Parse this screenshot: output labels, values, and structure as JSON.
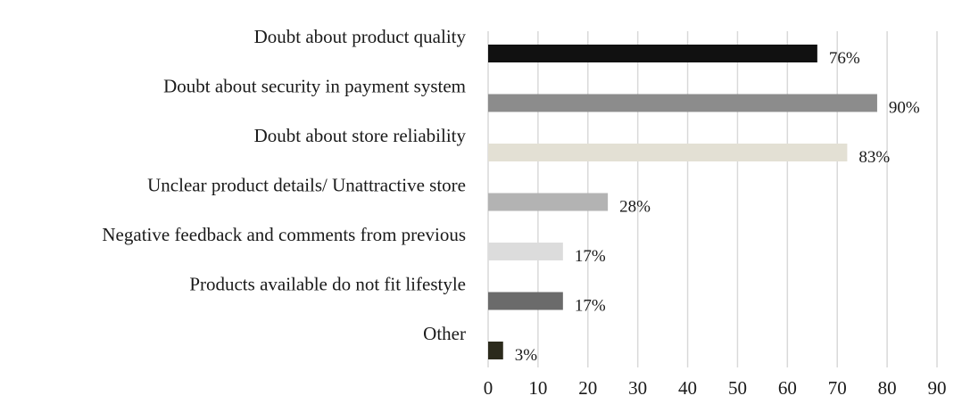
{
  "chart_data": {
    "type": "bar",
    "orientation": "horizontal",
    "categories": [
      "Doubt about product quality",
      "Doubt about security in payment system",
      "Doubt about store reliability",
      "Unclear product details/ Unattractive store",
      "Negative feedback and comments from previous",
      "Products available do not fit lifestyle",
      "Other"
    ],
    "values": [
      66,
      78,
      72,
      24,
      15,
      15,
      3
    ],
    "data_labels": [
      "76%",
      "90%",
      "83%",
      "28%",
      "17%",
      "17%",
      "3%"
    ],
    "bar_colors": [
      "#111111",
      "#8c8c8c",
      "#e3e0d4",
      "#b3b3b3",
      "#dcdcdc",
      "#6b6b6b",
      "#2b2a1c"
    ],
    "title": "",
    "xlabel": "",
    "ylabel": "",
    "xlim": [
      0,
      90
    ],
    "x_ticks": [
      "0",
      "10",
      "20",
      "30",
      "40",
      "50",
      "60",
      "70",
      "80",
      "90"
    ],
    "grid": "vertical",
    "grid_color": "#d9d9d9",
    "legend": "none"
  }
}
